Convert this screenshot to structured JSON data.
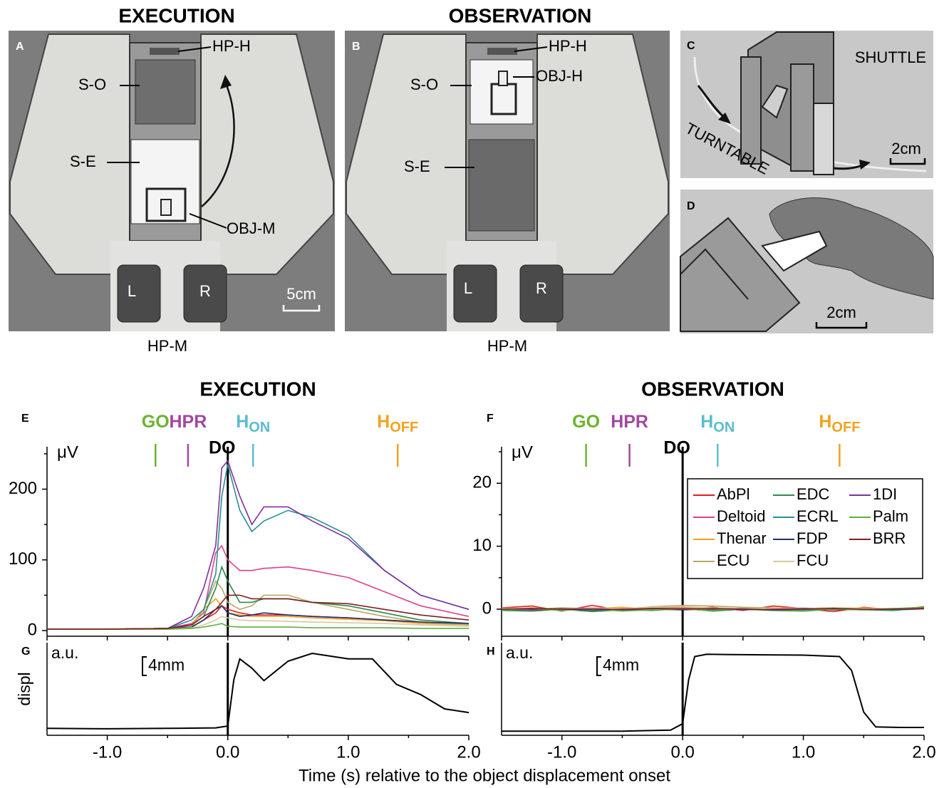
{
  "figure": {
    "xlabel": "Time (s) relative to the object displacement onset"
  },
  "photos": {
    "titles": [
      "EXECUTION",
      "OBSERVATION"
    ],
    "panel_a": {
      "letter": "A",
      "hp_h": "HP-H",
      "s_o": "S-O",
      "s_e": "S-E",
      "obj_m": "OBJ-M",
      "left": "L",
      "right": "R",
      "scale": "5cm",
      "hp_m": "HP-M"
    },
    "panel_b": {
      "letter": "B",
      "hp_h": "HP-H",
      "s_o": "S-O",
      "obj_h": "OBJ-H",
      "s_e": "S-E",
      "left": "L",
      "right": "R",
      "hp_m": "HP-M"
    },
    "panel_c": {
      "letter": "C",
      "shuttle": "SHUTTLE",
      "turntable": "TURNTABLE",
      "scale": "2cm"
    },
    "panel_d": {
      "letter": "D",
      "scale": "2cm"
    }
  },
  "chart_data": [
    {
      "type": "line",
      "panel": "E",
      "title": "EXECUTION",
      "ylabel": "μV",
      "x": [
        -1.5,
        -1.0,
        -0.5,
        -0.3,
        -0.2,
        -0.1,
        -0.05,
        0,
        0.1,
        0.2,
        0.3,
        0.5,
        0.7,
        1.0,
        1.3,
        1.6,
        2.0
      ],
      "xlim": [
        -1.5,
        2.0
      ],
      "ylim": [
        -8,
        260
      ],
      "yticks": [
        0,
        100,
        200
      ],
      "yminor": [
        50,
        150,
        250
      ],
      "xtick_marks": [
        -1.5,
        -1.0,
        -0.5,
        0,
        0.5,
        1.0,
        1.5,
        2.0
      ],
      "events": [
        {
          "label": "GO",
          "x": -0.6,
          "color": "#6ab42d"
        },
        {
          "label": "HPR",
          "x": -0.33,
          "color": "#a347a0"
        },
        {
          "label": "H",
          "subscript": "ON",
          "x": 0.21,
          "color": "#5bbcd0"
        },
        {
          "label": "H",
          "subscript": "OFF",
          "x": 1.41,
          "color": "#f2a21e"
        }
      ],
      "do_marker": {
        "label": "DO",
        "x": 0
      },
      "series": [
        {
          "color": "#e02020",
          "values": [
            2,
            2,
            3,
            5,
            15,
            25,
            35,
            30,
            25,
            22,
            22,
            22,
            20,
            18,
            15,
            12,
            8
          ]
        },
        {
          "color": "#e0408a",
          "values": [
            2,
            2,
            3,
            10,
            25,
            110,
            120,
            100,
            85,
            85,
            88,
            90,
            85,
            75,
            55,
            35,
            20
          ]
        },
        {
          "color": "#f0a020",
          "values": [
            2,
            2,
            3,
            8,
            30,
            45,
            35,
            25,
            22,
            20,
            20,
            20,
            18,
            16,
            14,
            10,
            8
          ]
        },
        {
          "color": "#b8a868",
          "values": [
            2,
            2,
            3,
            5,
            30,
            70,
            60,
            40,
            30,
            35,
            50,
            50,
            40,
            30,
            20,
            12,
            8
          ]
        },
        {
          "color": "#2a8a4a",
          "values": [
            2,
            2,
            3,
            8,
            20,
            60,
            90,
            70,
            40,
            40,
            45,
            45,
            40,
            35,
            25,
            15,
            10
          ]
        },
        {
          "color": "#2a9090",
          "values": [
            2,
            2,
            3,
            15,
            30,
            80,
            190,
            235,
            170,
            140,
            155,
            170,
            160,
            135,
            85,
            50,
            30
          ]
        },
        {
          "color": "#203070",
          "values": [
            2,
            2,
            3,
            5,
            15,
            30,
            35,
            25,
            20,
            22,
            25,
            22,
            20,
            18,
            15,
            12,
            10
          ]
        },
        {
          "color": "#d8c8a0",
          "values": [
            2,
            2,
            2,
            4,
            8,
            15,
            20,
            18,
            15,
            14,
            14,
            13,
            12,
            11,
            10,
            8,
            6
          ]
        },
        {
          "color": "#8030a0",
          "values": [
            2,
            2,
            3,
            20,
            60,
            120,
            230,
            240,
            190,
            150,
            175,
            175,
            155,
            130,
            85,
            50,
            30
          ]
        },
        {
          "color": "#60b040",
          "values": [
            2,
            2,
            2,
            3,
            5,
            8,
            10,
            6,
            5,
            5,
            5,
            5,
            4,
            4,
            4,
            3,
            3
          ]
        },
        {
          "color": "#802020",
          "values": [
            2,
            2,
            3,
            8,
            20,
            30,
            40,
            50,
            50,
            45,
            45,
            45,
            40,
            38,
            30,
            22,
            15
          ]
        }
      ]
    },
    {
      "type": "line",
      "panel": "F",
      "title": "OBSERVATION",
      "ylabel": "μV",
      "x": [
        -1.5,
        -1.25,
        -1.0,
        -0.75,
        -0.5,
        -0.25,
        0,
        0.25,
        0.5,
        0.75,
        1.0,
        1.25,
        1.5,
        1.75,
        2.0
      ],
      "xlim": [
        -1.5,
        2.0
      ],
      "ylim": [
        -4.3,
        25.8
      ],
      "yticks": [
        0,
        10,
        20
      ],
      "yminor": [
        5,
        15,
        25
      ],
      "xtick_marks": [
        -1.5,
        -1.0,
        -0.5,
        0,
        0.5,
        1.0,
        1.5,
        2.0
      ],
      "events": [
        {
          "label": "GO",
          "x": -0.8,
          "color": "#6ab42d"
        },
        {
          "label": "HPR",
          "x": -0.44,
          "color": "#a347a0"
        },
        {
          "label": "H",
          "subscript": "ON",
          "x": 0.29,
          "color": "#5bbcd0"
        },
        {
          "label": "H",
          "subscript": "OFF",
          "x": 1.3,
          "color": "#f2a21e"
        }
      ],
      "do_marker": {
        "label": "DO",
        "x": 0
      },
      "legend": "upper right",
      "series": [
        {
          "name": "AbPl",
          "color": "#e02020",
          "values": [
            0.2,
            0.5,
            -0.3,
            0.6,
            -0.2,
            0.4,
            0.1,
            0.3,
            -0.2,
            0.5,
            0.1,
            -0.4,
            0.3,
            -0.1,
            0.4
          ]
        },
        {
          "name": "Deltoid",
          "color": "#e0408a",
          "values": [
            0.1,
            -0.1,
            0.2,
            0.0,
            0.1,
            0.2,
            0.3,
            0.2,
            0.1,
            0.0,
            0.1,
            0.2,
            0.0,
            0.1,
            0.0
          ]
        },
        {
          "name": "Thenar",
          "color": "#f0a020",
          "values": [
            0.0,
            0.2,
            -0.1,
            0.1,
            0.3,
            0.0,
            0.2,
            0.1,
            0.0,
            0.2,
            -0.1,
            0.1,
            0.2,
            0.0,
            0.1
          ]
        },
        {
          "name": "ECU",
          "color": "#b8a868",
          "values": [
            0.1,
            0.0,
            0.2,
            0.1,
            0.0,
            0.4,
            0.6,
            0.5,
            0.3,
            0.2,
            0.1,
            0.2,
            0.1,
            0.0,
            0.2
          ]
        },
        {
          "name": "EDC",
          "color": "#2a8a4a",
          "values": [
            -0.2,
            -0.3,
            0.0,
            -0.4,
            -0.1,
            -0.2,
            0.1,
            -0.3,
            0.0,
            -0.2,
            -0.3,
            0.0,
            -0.1,
            -0.2,
            0.2
          ]
        },
        {
          "name": "ECRL",
          "color": "#2a9090",
          "values": [
            0.0,
            -0.1,
            0.1,
            -0.2,
            0.0,
            0.1,
            0.0,
            -0.1,
            0.1,
            0.0,
            -0.1,
            0.1,
            0.0,
            -0.1,
            0.0
          ]
        },
        {
          "name": "FDP",
          "color": "#203070",
          "values": [
            0.0,
            0.0,
            -0.1,
            0.0,
            0.1,
            0.0,
            -0.1,
            0.0,
            0.0,
            0.1,
            0.0,
            -0.1,
            0.0,
            0.0,
            0.0
          ]
        },
        {
          "name": "FCU",
          "color": "#d8c8a0",
          "values": [
            0.1,
            0.1,
            0.0,
            0.2,
            0.1,
            0.3,
            0.4,
            0.2,
            0.1,
            0.1,
            0.2,
            0.0,
            0.1,
            0.1,
            0.0
          ]
        },
        {
          "name": "1DI",
          "color": "#8030a0",
          "values": [
            0.0,
            -0.1,
            0.0,
            0.1,
            -0.1,
            0.0,
            0.1,
            0.0,
            -0.1,
            0.0,
            0.1,
            0.0,
            -0.1,
            0.0,
            0.1
          ]
        },
        {
          "name": "Palm",
          "color": "#60b040",
          "values": [
            -0.1,
            0.1,
            -0.2,
            0.0,
            -0.3,
            -0.1,
            0.0,
            -0.2,
            0.1,
            -0.1,
            -0.2,
            0.0,
            -0.1,
            0.1,
            0.3
          ]
        },
        {
          "name": "BRR",
          "color": "#802020",
          "values": [
            0.0,
            0.1,
            0.0,
            -0.1,
            0.0,
            0.1,
            0.0,
            0.1,
            0.0,
            -0.1,
            0.0,
            0.1,
            0.0,
            0.0,
            0.1
          ]
        }
      ]
    },
    {
      "type": "line",
      "panel": "G",
      "ylabel": "displ",
      "unit_label": "a.u.",
      "scale_bar": {
        "value": 4,
        "label": "4mm"
      },
      "x": [
        -1.5,
        -1.0,
        -0.5,
        -0.1,
        0,
        0.05,
        0.1,
        0.2,
        0.3,
        0.5,
        0.7,
        1.0,
        1.2,
        1.4,
        1.6,
        1.8,
        2.0
      ],
      "values": [
        1.5,
        1.4,
        1.5,
        1.6,
        2.0,
        12.0,
        16.5,
        14.5,
        11.8,
        16.0,
        17.7,
        16.5,
        16.5,
        11.0,
        8.8,
        5.7,
        4.9
      ],
      "color": "#000000",
      "xlim": [
        -1.5,
        2.0
      ],
      "ylim": [
        0,
        20
      ],
      "xticks": [
        {
          "value": -1,
          "label": "-1.0"
        },
        {
          "value": 0,
          "label": "0.0"
        },
        {
          "value": 1,
          "label": "1.0"
        },
        {
          "value": 2,
          "label": "2.0"
        }
      ],
      "xminor": [
        -0.5,
        0.5,
        1.5
      ],
      "marker_x": 0
    },
    {
      "type": "line",
      "panel": "H",
      "unit_label": "a.u.",
      "scale_bar": {
        "value": 4,
        "label": "4mm"
      },
      "x": [
        -1.5,
        -1.0,
        -0.5,
        -0.1,
        0,
        0.05,
        0.1,
        0.2,
        0.5,
        1.0,
        1.3,
        1.4,
        1.5,
        1.6,
        1.8,
        2.0
      ],
      "values": [
        0.9,
        0.9,
        0.9,
        1.1,
        2.5,
        12.0,
        17.0,
        17.5,
        17.4,
        17.3,
        17.0,
        14.0,
        5.0,
        1.8,
        1.7,
        1.7
      ],
      "color": "#000000",
      "xlim": [
        -1.5,
        2.0
      ],
      "ylim": [
        0,
        20
      ],
      "xticks": [
        {
          "value": -1,
          "label": "-1.0"
        },
        {
          "value": 0,
          "label": "0.0"
        },
        {
          "value": 1,
          "label": "1.0"
        },
        {
          "value": 2,
          "label": "2.0"
        }
      ],
      "xminor": [
        -0.5,
        0.5,
        1.5
      ],
      "marker_x": 0
    }
  ]
}
